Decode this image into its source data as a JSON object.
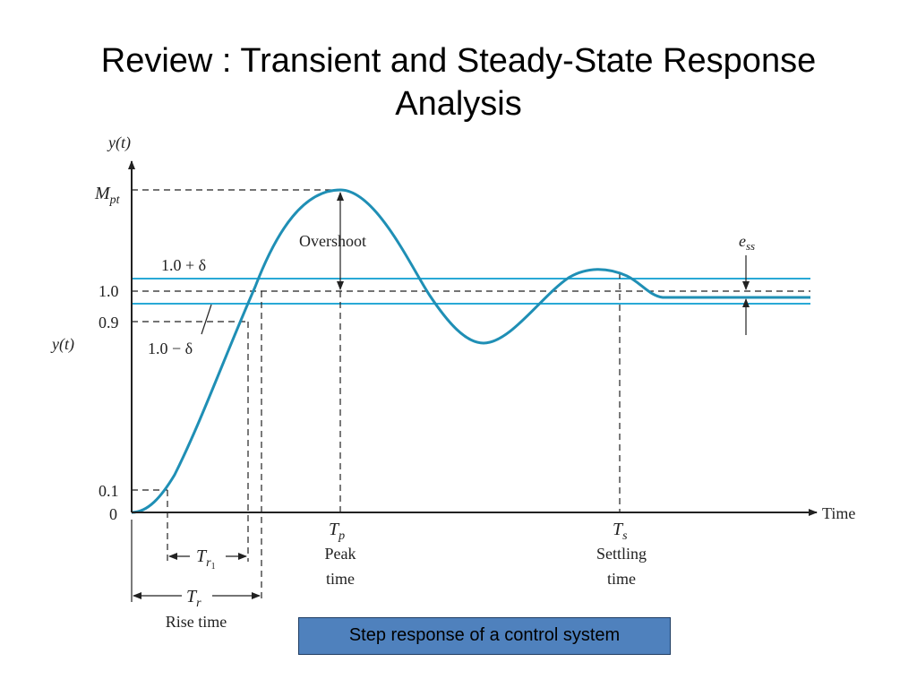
{
  "slide": {
    "title_line1": "Review : Transient and Steady-State Response",
    "title_line2": "Analysis",
    "caption": "Step response of a control system"
  },
  "colors": {
    "response_curve": "#1f8fb5",
    "tolerance_band": "#29a9d6",
    "caption_box": "#4f81bd"
  },
  "diagram": {
    "y_axis_label": "y(t)",
    "x_axis_label": "Time",
    "y_ticks": {
      "mpt": "M",
      "mpt_sub": "pt",
      "one": "1.0",
      "point_nine": "0.9",
      "point_one": "0.1",
      "zero": "0"
    },
    "band_upper_label": "1.0 + δ",
    "band_lower_label": "1.0 − δ",
    "overshoot_label": "Overshoot",
    "ess_label": "e",
    "ess_sub": "ss",
    "tp_symbol": "T",
    "tp_sub": "p",
    "tp_line1": "Peak",
    "tp_line2": "time",
    "ts_symbol": "T",
    "ts_sub": "s",
    "ts_line1": "Settling",
    "ts_line2": "time",
    "tr1_symbol": "T",
    "tr1_sub": "r",
    "tr1_subsub": "1",
    "tr_symbol": "T",
    "tr_sub": "r",
    "tr_label": "Rise time"
  }
}
